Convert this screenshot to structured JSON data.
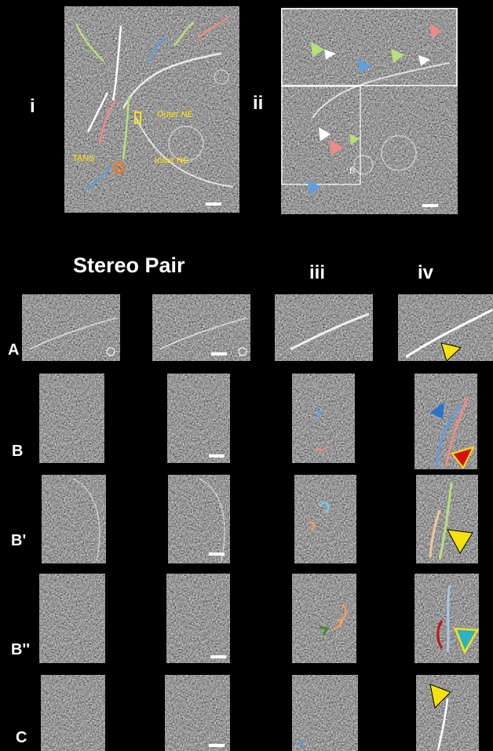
{
  "panel_labels": {
    "i": "i",
    "ii": "ii"
  },
  "annotations": {
    "outer_ne": "Outer NE",
    "inner_ne": "Inner NE",
    "tans": "TANS",
    "box_b": "B"
  },
  "column_headers": {
    "stereo": "Stereo Pair",
    "iii": "iii",
    "iv": "iv"
  },
  "row_labels": {
    "a": "A",
    "b": "B",
    "b1": "B'",
    "b2": "B''",
    "c": "C"
  },
  "colors": {
    "green": "#b6e07a",
    "blue": "#5f9fe0",
    "pink": "#f08a86",
    "yellow": "#f4e20c",
    "orange": "#f07a1e",
    "red": "#e01010",
    "teal": "#2fb0c6",
    "white": "#ffffff",
    "background": "#000000"
  }
}
